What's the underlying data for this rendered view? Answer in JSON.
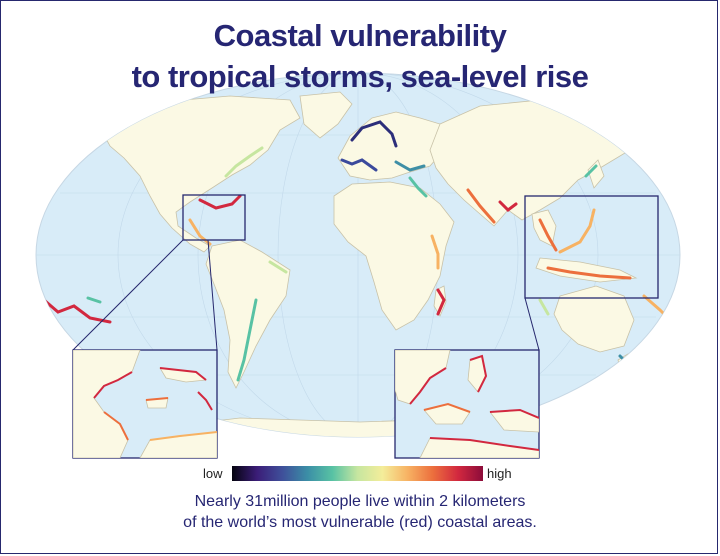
{
  "title": {
    "line1": "Coastal vulnerability",
    "line2": "to tropical storms, sea-level rise"
  },
  "legend": {
    "low_label": "low",
    "high_label": "high",
    "colors": [
      "#05040f",
      "#3b1d78",
      "#3f4f9a",
      "#3b8ea6",
      "#58c2a4",
      "#c6e6a0",
      "#f4ed9a",
      "#f7b263",
      "#ec6f3d",
      "#d2283f",
      "#8c0c3a"
    ]
  },
  "caption": {
    "line1": "Nearly 31million people live within 2 kilometers",
    "line2": "of the world’s most vulnerable (red) coastal areas."
  },
  "colors": {
    "ocean": "#d8ecf8",
    "land": "#fbf9e4",
    "border": "#c8c2a8",
    "frame": "#26286e",
    "title": "#262673"
  }
}
